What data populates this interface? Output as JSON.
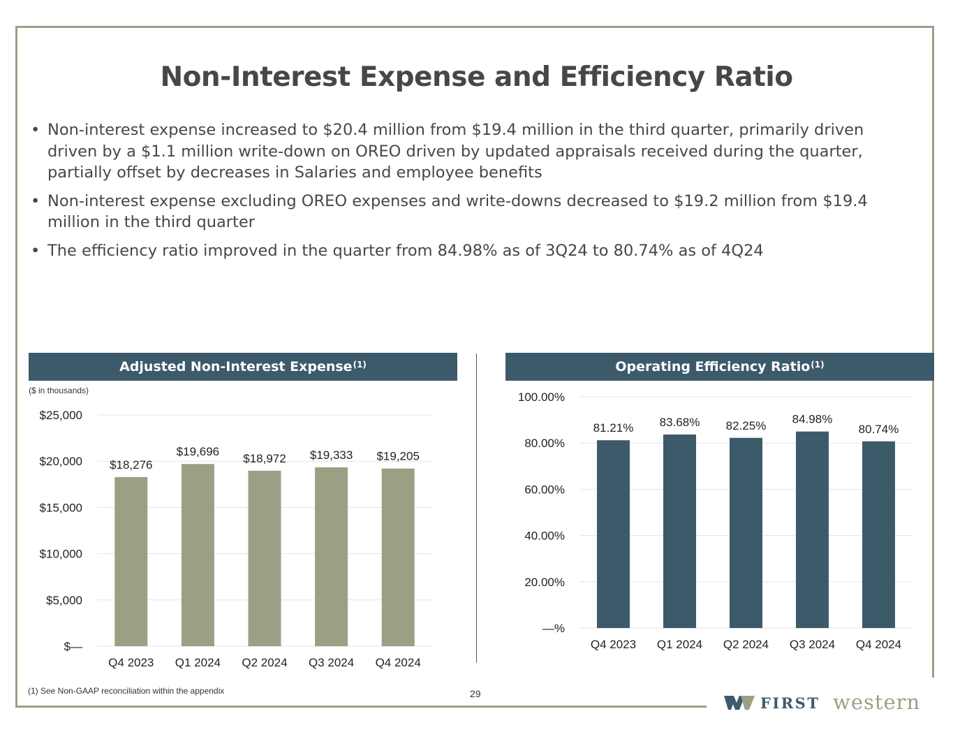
{
  "page": {
    "title": "Non-Interest Expense and Efficiency Ratio",
    "bullets": [
      "Non-interest expense increased to $20.4 million from $19.4 million in the third quarter, primarily driven driven by a $1.1 million write-down on OREO driven by updated appraisals received during the quarter, partially offset by decreases in Salaries and employee benefits",
      "Non-interest expense excluding OREO expenses and write-downs decreased to $19.2 million from $19.4 million in the third quarter",
      "The efficiency ratio improved in the quarter from 84.98% as of 3Q24 to 80.74% as of 4Q24"
    ],
    "footnote": "(1) See Non-GAAP reconciliation within the appendix",
    "page_number": "29",
    "logo": {
      "first": "FIRST",
      "second": "western"
    },
    "colors": {
      "frame": "#9c9f86",
      "header_bg": "#3d5a6b",
      "bar_left": "#9b9f84",
      "bar_right": "#3d5a6b"
    }
  },
  "chart_data": [
    {
      "type": "bar",
      "title": "Adjusted Non-Interest Expense",
      "title_sup": "(1)",
      "units_note": "($ in thousands)",
      "categories": [
        "Q4 2023",
        "Q1 2024",
        "Q2 2024",
        "Q3 2024",
        "Q4 2024"
      ],
      "values": [
        18276,
        19696,
        18972,
        19333,
        19205
      ],
      "value_labels": [
        "$18,276",
        "$19,696",
        "$18,972",
        "$19,333",
        "$19,205"
      ],
      "ylim": [
        0,
        25000
      ],
      "yticks": [
        0,
        5000,
        10000,
        15000,
        20000,
        25000
      ],
      "ytick_labels": [
        "$—",
        "$5,000",
        "$10,000",
        "$15,000",
        "$20,000",
        "$25,000"
      ],
      "grid": true
    },
    {
      "type": "bar",
      "title": "Operating Efficiency Ratio",
      "title_sup": "(1)",
      "categories": [
        "Q4 2023",
        "Q1 2024",
        "Q2 2024",
        "Q3 2024",
        "Q4 2024"
      ],
      "values": [
        81.21,
        83.68,
        82.25,
        84.98,
        80.74
      ],
      "value_labels": [
        "81.21%",
        "83.68%",
        "82.25%",
        "84.98%",
        "80.74%"
      ],
      "ylim": [
        0,
        100
      ],
      "yticks": [
        0,
        20,
        40,
        60,
        80,
        100
      ],
      "ytick_labels": [
        "—%",
        "20.00%",
        "40.00%",
        "60.00%",
        "80.00%",
        "100.00%"
      ],
      "grid": true
    }
  ]
}
